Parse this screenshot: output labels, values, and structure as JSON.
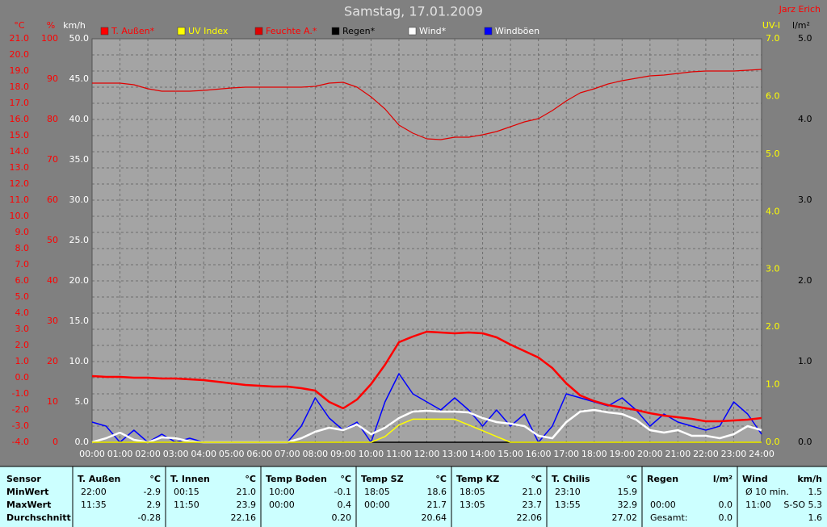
{
  "chart_data": {
    "type": "line",
    "title": "Samstag, 17.01.2009",
    "author": "Jarz Erich",
    "x": [
      0,
      0.5,
      1,
      1.5,
      2,
      2.5,
      3,
      3.5,
      4,
      4.5,
      5,
      5.5,
      6,
      6.5,
      7,
      7.5,
      8,
      8.5,
      9,
      9.5,
      10,
      10.5,
      11,
      11.5,
      12,
      12.5,
      13,
      13.5,
      14,
      14.5,
      15,
      15.5,
      16,
      16.5,
      17,
      17.5,
      18,
      18.5,
      19,
      19.5,
      20,
      20.5,
      21,
      21.5,
      22,
      22.5,
      23,
      23.5,
      24
    ],
    "xlim": [
      0,
      24
    ],
    "xticks": [
      {
        "value": 0,
        "label": "00:00"
      },
      {
        "value": 1,
        "label": "01:00"
      },
      {
        "value": 2,
        "label": "02:00"
      },
      {
        "value": 3,
        "label": "03:00"
      },
      {
        "value": 4,
        "label": "04:00"
      },
      {
        "value": 5,
        "label": "05:00"
      },
      {
        "value": 6,
        "label": "06:00"
      },
      {
        "value": 7,
        "label": "07:00"
      },
      {
        "value": 8,
        "label": "08:00"
      },
      {
        "value": 9,
        "label": "09:00"
      },
      {
        "value": 10,
        "label": "10:00"
      },
      {
        "value": 11,
        "label": "11:00"
      },
      {
        "value": 12,
        "label": "12:00"
      },
      {
        "value": 13,
        "label": "13:00"
      },
      {
        "value": 14,
        "label": "14:00"
      },
      {
        "value": 15,
        "label": "15:00"
      },
      {
        "value": 16,
        "label": "16:00"
      },
      {
        "value": 17,
        "label": "17:00"
      },
      {
        "value": 18,
        "label": "18:00"
      },
      {
        "value": 19,
        "label": "19:00"
      },
      {
        "value": 20,
        "label": "20:00"
      },
      {
        "value": 21,
        "label": "21:00"
      },
      {
        "value": 22,
        "label": "22:00"
      },
      {
        "value": 23,
        "label": "23:00"
      },
      {
        "value": 24,
        "label": "24:00"
      }
    ],
    "grid": true,
    "axes": [
      {
        "id": "temp",
        "label": "°C",
        "color": "#ff0000",
        "lim": [
          -4,
          21
        ],
        "ticks": [
          {
            "value": -4,
            "label": "-4.0"
          },
          {
            "value": -3,
            "label": "-3.0"
          },
          {
            "value": -2,
            "label": "-2.0"
          },
          {
            "value": -1,
            "label": "-1.0"
          },
          {
            "value": 0,
            "label": "0.0"
          },
          {
            "value": 1,
            "label": "1.0"
          },
          {
            "value": 2,
            "label": "2.0"
          },
          {
            "value": 3,
            "label": "3.0"
          },
          {
            "value": 4,
            "label": "4.0"
          },
          {
            "value": 5,
            "label": "5.0"
          },
          {
            "value": 6,
            "label": "6.0"
          },
          {
            "value": 7,
            "label": "7.0"
          },
          {
            "value": 8,
            "label": "8.0"
          },
          {
            "value": 9,
            "label": "9.0"
          },
          {
            "value": 10,
            "label": "10.0"
          },
          {
            "value": 11,
            "label": "11.0"
          },
          {
            "value": 12,
            "label": "12.0"
          },
          {
            "value": 13,
            "label": "13.0"
          },
          {
            "value": 14,
            "label": "14.0"
          },
          {
            "value": 15,
            "label": "15.0"
          },
          {
            "value": 16,
            "label": "16.0"
          },
          {
            "value": 17,
            "label": "17.0"
          },
          {
            "value": 18,
            "label": "18.0"
          },
          {
            "value": 19,
            "label": "19.0"
          },
          {
            "value": 20,
            "label": "20.0"
          },
          {
            "value": 21,
            "label": "21.0"
          }
        ]
      },
      {
        "id": "hum",
        "label": "%",
        "color": "#ff0000",
        "lim": [
          0,
          100
        ],
        "ticks": [
          0,
          10,
          20,
          30,
          40,
          50,
          60,
          70,
          80,
          90,
          100
        ]
      },
      {
        "id": "wind",
        "label": "km/h",
        "color": "#ffffff",
        "lim": [
          0,
          50
        ],
        "ticks": [
          {
            "value": 0,
            "label": "0.0"
          },
          {
            "value": 5,
            "label": "5.0"
          },
          {
            "value": 10,
            "label": "10.0"
          },
          {
            "value": 15,
            "label": "15.0"
          },
          {
            "value": 20,
            "label": "20.0"
          },
          {
            "value": 25,
            "label": "25.0"
          },
          {
            "value": 30,
            "label": "30.0"
          },
          {
            "value": 35,
            "label": "35.0"
          },
          {
            "value": 40,
            "label": "40.0"
          },
          {
            "value": 45,
            "label": "45.0"
          },
          {
            "value": 50,
            "label": "50.0"
          }
        ]
      },
      {
        "id": "uv",
        "label": "UV-I",
        "color": "#ffff00",
        "lim": [
          0,
          7
        ],
        "ticks": [
          {
            "value": 0,
            "label": "0.0"
          },
          {
            "value": 1,
            "label": "1.0"
          },
          {
            "value": 2,
            "label": "2.0"
          },
          {
            "value": 3,
            "label": "3.0"
          },
          {
            "value": 4,
            "label": "4.0"
          },
          {
            "value": 5,
            "label": "5.0"
          },
          {
            "value": 6,
            "label": "6.0"
          },
          {
            "value": 7,
            "label": "7.0"
          }
        ]
      },
      {
        "id": "rain",
        "label": "l/m²",
        "color": "#000000",
        "lim": [
          0,
          5
        ],
        "ticks": [
          {
            "value": 0,
            "label": "0.0"
          },
          {
            "value": 1,
            "label": "1.0"
          },
          {
            "value": 2,
            "label": "2.0"
          },
          {
            "value": 3,
            "label": "3.0"
          },
          {
            "value": 4,
            "label": "4.0"
          },
          {
            "value": 5,
            "label": "5.0"
          }
        ]
      }
    ],
    "series": [
      {
        "name": "T. Außen*",
        "color": "#ff0000",
        "axis": "temp",
        "line_width": 2.5,
        "values": [
          0.1,
          0.05,
          0.05,
          0.0,
          0.0,
          -0.05,
          -0.05,
          -0.1,
          -0.15,
          -0.25,
          -0.35,
          -0.45,
          -0.5,
          -0.55,
          -0.55,
          -0.65,
          -0.8,
          -1.5,
          -1.9,
          -1.35,
          -0.4,
          0.8,
          2.2,
          2.55,
          2.85,
          2.8,
          2.75,
          2.8,
          2.75,
          2.5,
          2.05,
          1.65,
          1.25,
          0.6,
          -0.35,
          -1.1,
          -1.45,
          -1.7,
          -1.85,
          -2.0,
          -2.2,
          -2.35,
          -2.45,
          -2.55,
          -2.7,
          -2.7,
          -2.65,
          -2.6,
          -2.5
        ]
      },
      {
        "name": "UV Index",
        "color": "#ffff00",
        "axis": "uv",
        "line_width": 1.5,
        "values": [
          0,
          0,
          0,
          0,
          0,
          0,
          0,
          0,
          0,
          0,
          0,
          0,
          0,
          0,
          0,
          0,
          0,
          0,
          0,
          0,
          0,
          0.1,
          0.3,
          0.4,
          0.4,
          0.4,
          0.4,
          0.3,
          0.2,
          0.1,
          0,
          0,
          0,
          0,
          0,
          0,
          0,
          0,
          0,
          0,
          0,
          0,
          0,
          0,
          0,
          0,
          0,
          0,
          0
        ]
      },
      {
        "name": "Feuchte A.*",
        "color": "#e00000",
        "axis": "hum",
        "line_width": 1.2,
        "values": [
          89,
          89,
          89,
          88.6,
          87.6,
          87,
          87,
          87,
          87.2,
          87.5,
          87.8,
          88,
          88,
          88,
          88,
          88,
          88.2,
          89,
          89.2,
          88,
          85.6,
          82.6,
          78.6,
          76.6,
          75.2,
          75,
          75.6,
          75.6,
          76.2,
          77,
          78.2,
          79.4,
          80.2,
          82.2,
          84.6,
          86.6,
          87.6,
          88.8,
          89.6,
          90.2,
          90.8,
          91,
          91.4,
          91.8,
          92,
          92,
          92,
          92.2,
          92.4
        ]
      },
      {
        "name": "Regen*",
        "color": "#000000",
        "axis": "rain",
        "line_width": 1.5,
        "values": [
          0,
          0,
          0,
          0,
          0,
          0,
          0,
          0,
          0,
          0,
          0,
          0,
          0,
          0,
          0,
          0,
          0,
          0,
          0,
          0,
          0,
          0,
          0,
          0,
          0,
          0,
          0,
          0,
          0,
          0,
          0,
          0,
          0,
          0,
          0,
          0,
          0,
          0,
          0,
          0,
          0,
          0,
          0,
          0,
          0,
          0,
          0,
          0,
          0
        ]
      },
      {
        "name": "Wind*",
        "color": "#ffffff",
        "axis": "wind",
        "line_width": 2.5,
        "values": [
          0,
          0.5,
          1.2,
          0.3,
          0,
          0.6,
          0.5,
          0.1,
          0,
          0,
          0,
          0,
          0,
          0,
          0,
          0.5,
          1.3,
          1.8,
          1.5,
          2.2,
          1.0,
          1.8,
          3.0,
          3.8,
          3.9,
          3.8,
          3.8,
          3.7,
          3.0,
          2.5,
          2.3,
          2.0,
          0.8,
          0.5,
          2.5,
          3.8,
          4.0,
          3.7,
          3.5,
          2.8,
          1.5,
          1.2,
          1.5,
          0.8,
          0.8,
          0.5,
          1.0,
          2.0,
          1.5
        ]
      },
      {
        "name": "Windböen",
        "color": "#0000ff",
        "axis": "wind",
        "line_width": 1.5,
        "values": [
          2.5,
          2.0,
          0,
          1.5,
          0,
          1.0,
          0,
          0.5,
          0,
          0,
          0,
          0,
          0,
          0,
          0,
          2.0,
          5.5,
          3.0,
          1.5,
          2.5,
          0,
          5.0,
          8.5,
          6.0,
          5.0,
          4.0,
          5.5,
          4.0,
          2.0,
          4.0,
          2.0,
          3.5,
          0,
          2.0,
          6.0,
          5.5,
          5.0,
          4.5,
          5.5,
          4.0,
          2.0,
          3.5,
          2.5,
          2.0,
          1.5,
          2.0,
          5.0,
          3.5,
          1.0
        ]
      }
    ]
  },
  "table": {
    "row_labels": {
      "header": "Sensor",
      "rows": [
        "MinWert",
        "MaxWert",
        "Durchschnitt"
      ]
    },
    "columns": [
      {
        "header": "T. Außen",
        "unit": "°C",
        "rows": [
          [
            "22:00",
            "-2.9"
          ],
          [
            "11:35",
            "2.9"
          ],
          [
            null,
            "-0.28"
          ]
        ]
      },
      {
        "header": "T. Innen",
        "unit": "°C",
        "rows": [
          [
            "00:15",
            "21.0"
          ],
          [
            "11:50",
            "23.9"
          ],
          [
            null,
            "22.16"
          ]
        ]
      },
      {
        "header": "Temp Boden",
        "unit": "°C",
        "rows": [
          [
            "10:00",
            "-0.1"
          ],
          [
            "00:00",
            "0.4"
          ],
          [
            null,
            "0.20"
          ]
        ]
      },
      {
        "header": "Temp SZ",
        "unit": "°C",
        "rows": [
          [
            "18:05",
            "18.6"
          ],
          [
            "00:00",
            "21.7"
          ],
          [
            null,
            "20.64"
          ]
        ]
      },
      {
        "header": "Temp KZ",
        "unit": "°C",
        "rows": [
          [
            "18:05",
            "21.0"
          ],
          [
            "13:05",
            "23.7"
          ],
          [
            null,
            "22.06"
          ]
        ]
      },
      {
        "header": "T. Chilis",
        "unit": "°C",
        "rows": [
          [
            "23:10",
            "15.9"
          ],
          [
            "13:55",
            "32.9"
          ],
          [
            null,
            "27.02"
          ]
        ]
      },
      {
        "header": "Regen",
        "unit": "l/m²",
        "rows": [
          [
            null,
            null
          ],
          [
            "00:00",
            "0.0"
          ],
          [
            "Gesamt:",
            "0.0"
          ]
        ]
      },
      {
        "header": "Wind",
        "unit": "km/h",
        "rows": [
          [
            "Ø 10 min.",
            "1.5"
          ],
          [
            "11:00",
            "S-SO 5.3"
          ],
          [
            null,
            "1.6"
          ]
        ]
      }
    ]
  }
}
